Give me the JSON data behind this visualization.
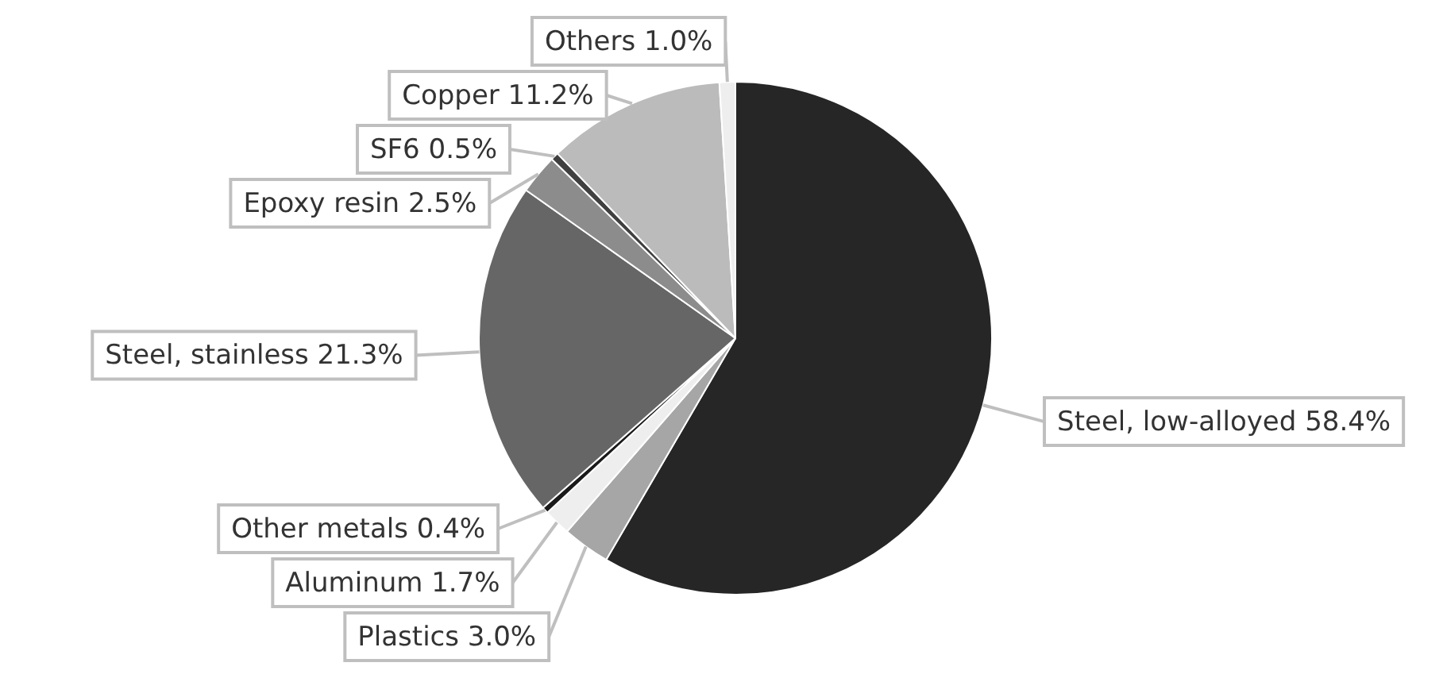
{
  "chart_data": {
    "type": "pie",
    "categories": [
      "Steel, low-alloyed",
      "Plastics",
      "Aluminum",
      "Other metals",
      "Steel, stainless",
      "Epoxy resin",
      "SF6",
      "Copper",
      "Others"
    ],
    "values": [
      58.4,
      3.0,
      1.7,
      0.4,
      21.3,
      2.5,
      0.5,
      11.2,
      1.0
    ],
    "value_labels": [
      "58.4%",
      "3.0%",
      "1.7%",
      "0.4%",
      "21.3%",
      "2.5%",
      "0.5%",
      "11.2%",
      "1.0%"
    ],
    "colors": [
      "#262626",
      "#a6a6a6",
      "#eeeeee",
      "#1a1a1a",
      "#666666",
      "#8c8c8c",
      "#404040",
      "#bbbbbb",
      "#eeeeee"
    ],
    "legend": false
  }
}
